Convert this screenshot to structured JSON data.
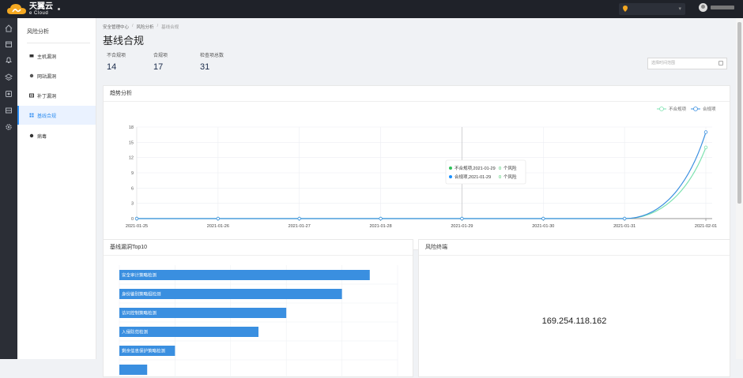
{
  "header": {
    "logo_cn": "天翼云",
    "logo_en": "e Cloud",
    "region_value": "",
    "user_name": ""
  },
  "sidebar": {
    "title": "风险分析",
    "items": [
      {
        "label": "主机漏洞",
        "icon": "monitor-icon",
        "active": false
      },
      {
        "label": "网站漏洞",
        "icon": "globe-icon",
        "active": false
      },
      {
        "label": "补丁漏洞",
        "icon": "patch-icon",
        "active": false
      },
      {
        "label": "基线合规",
        "icon": "grid-icon",
        "active": true
      },
      {
        "label": "病毒",
        "icon": "bug-icon",
        "active": false
      }
    ]
  },
  "breadcrumb": [
    "安全管理中心",
    "风险分析",
    "基线合规"
  ],
  "page_title": "基线合规",
  "stats": [
    {
      "label": "不合规项",
      "value": "14"
    },
    {
      "label": "合规项",
      "value": "17"
    },
    {
      "label": "检查项总数",
      "value": "31"
    }
  ],
  "date_range": {
    "placeholder": "选择时间范围"
  },
  "trend": {
    "title": "趋势分析",
    "tooltip": [
      {
        "text": "不合规项,2021-01-29",
        "value": "0",
        "suffix": "个风险",
        "color": "#2fc25b"
      },
      {
        "text": "合规项,2021-01-29",
        "value": "0",
        "suffix": "个风险",
        "color": "#1890ff"
      }
    ]
  },
  "chart_data": {
    "type": "line",
    "x": [
      "2021-01-25",
      "2021-01-26",
      "2021-01-27",
      "2021-01-28",
      "2021-01-29",
      "2021-01-30",
      "2021-01-31",
      "2021-02-01"
    ],
    "series": [
      {
        "name": "不合规项",
        "values": [
          0,
          0,
          0,
          0,
          0,
          0,
          0,
          14
        ],
        "color": "#7ee2b0"
      },
      {
        "name": "合规项",
        "values": [
          0,
          0,
          0,
          0,
          0,
          0,
          0,
          17
        ],
        "color": "#3a8fe0"
      }
    ],
    "y_ticks": [
      "0",
      "3",
      "6",
      "9",
      "12",
      "15",
      "18"
    ],
    "ylim": [
      0,
      18
    ],
    "legend_position": "top-right",
    "grid": true
  },
  "top10": {
    "title": "基线漏洞Top10",
    "bars": [
      {
        "label": "安全审计策略检测",
        "value": 0.9
      },
      {
        "label": "身份鉴别策略组检测",
        "value": 0.8
      },
      {
        "label": "访问控制策略检测",
        "value": 0.6
      },
      {
        "label": "入侵防范检测",
        "value": 0.5
      },
      {
        "label": "剩余信息保护策略检测",
        "value": 0.2
      },
      {
        "label": "",
        "value": 0.1
      }
    ]
  },
  "risk_terminal": {
    "title": "风险终端",
    "ip": "169.254.118.162"
  }
}
